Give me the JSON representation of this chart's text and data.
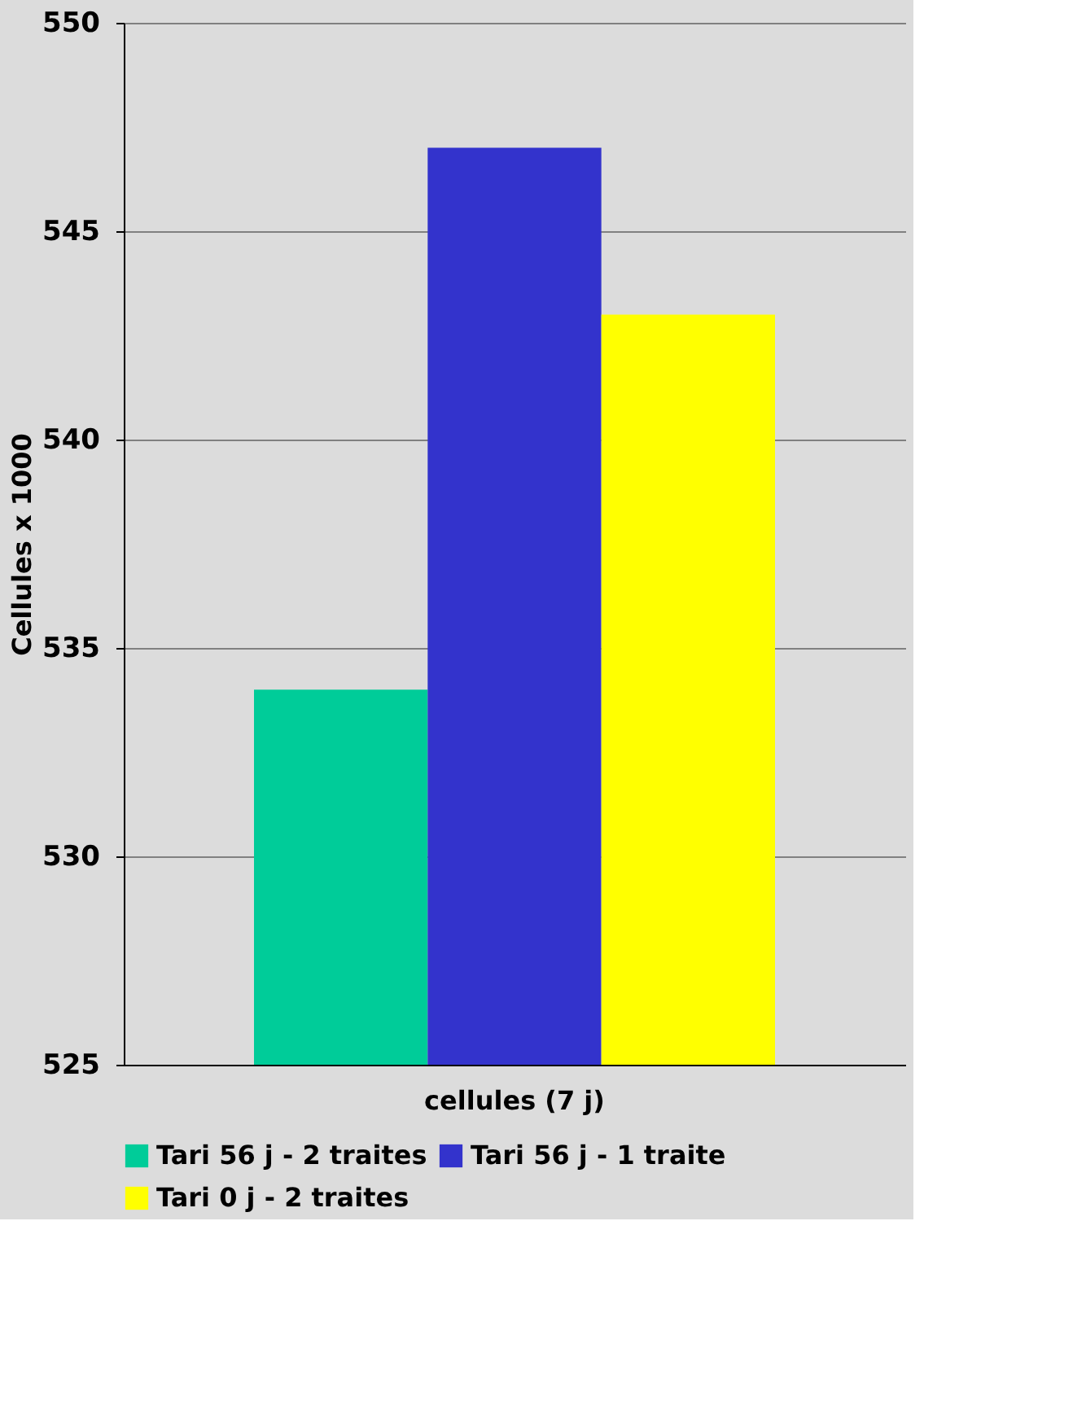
{
  "chart_data": {
    "type": "bar",
    "ylabel": "Cellules x 1000",
    "categories": [
      "cellules (7 j)"
    ],
    "series": [
      {
        "name": "Tari 56 j - 2 traites",
        "color": "#00cc99",
        "values": [
          534
        ]
      },
      {
        "name": "Tari 56 j - 1 traite",
        "color": "#3333cc",
        "values": [
          547
        ]
      },
      {
        "name": "Tari 0 j - 2 traites",
        "color": "#ffff00",
        "values": [
          543
        ]
      }
    ],
    "ylim": [
      525,
      550
    ],
    "yticks": [
      525,
      530,
      535,
      540,
      545,
      550
    ],
    "grid": "y",
    "legend": "bottom"
  }
}
